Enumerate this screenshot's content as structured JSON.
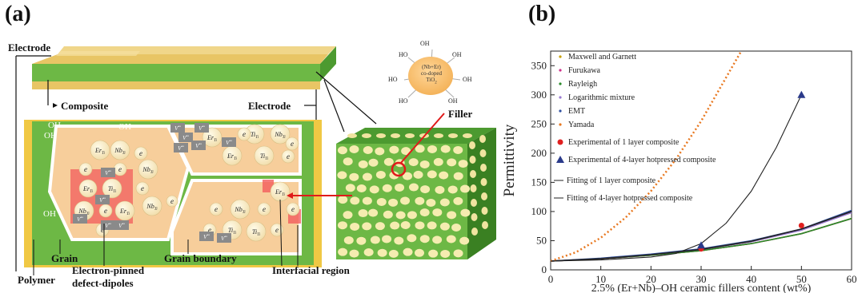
{
  "panel_a": {
    "label": "(a)",
    "labels": {
      "electrode_top": "Electrode",
      "composite": "Composite",
      "electrode_mid": "Electrode",
      "filler": "Filler",
      "grain": "Grain",
      "polymer": "Polymer",
      "electron_pinned": "Electron-pinned",
      "defect_dipoles": "defect-dipoles",
      "grain_boundary": "Grain boundary",
      "interfacial_region": "Interfacial region"
    },
    "molecule": {
      "center_line1": "(Nb+Er)",
      "center_line2": "co-doped",
      "center_line3": "TiO",
      "center_sub": "2",
      "oh": "OH",
      "ho": "HO"
    },
    "species": {
      "er": "Er",
      "nb": "Nb",
      "ti": "Ti",
      "e": "e",
      "sub": "Ti",
      "vo": "V",
      "vo_sup": "••",
      "oh": "OH"
    }
  },
  "panel_b": {
    "label": "(b)",
    "chart_data": {
      "type": "line",
      "xlabel": "2.5% (Er+Nb)–OH ceramic fillers content (wt%)",
      "ylabel": "Permittivity",
      "xlim": [
        0,
        60
      ],
      "ylim": [
        0,
        375
      ],
      "xticks": [
        0,
        10,
        20,
        30,
        40,
        50,
        60
      ],
      "yticks": [
        0,
        50,
        100,
        150,
        200,
        250,
        300,
        350
      ],
      "legend_position": "top-left",
      "series": [
        {
          "name": "Maxwell and Garnett",
          "color": "#c8a000",
          "x": [
            0,
            10,
            20,
            30,
            40,
            50,
            60
          ],
          "y": [
            15,
            19,
            25,
            33,
            45,
            62,
            88
          ]
        },
        {
          "name": "Furukawa",
          "color": "#d0308a",
          "x": [
            0,
            10,
            20,
            30,
            40,
            50,
            60
          ],
          "y": [
            15,
            19,
            25,
            33,
            45,
            62,
            88
          ]
        },
        {
          "name": "Rayleigh",
          "color": "#2a8a2a",
          "x": [
            0,
            10,
            20,
            30,
            40,
            50,
            60
          ],
          "y": [
            15,
            19,
            25,
            33,
            45,
            62,
            88
          ]
        },
        {
          "name": "Logarithmic mixture",
          "color": "#9a7ad0",
          "x": [
            0,
            10,
            20,
            30,
            40,
            50,
            60
          ],
          "y": [
            15,
            19,
            26,
            35,
            48,
            68,
            98
          ]
        },
        {
          "name": "EMT",
          "color": "#3050a0",
          "x": [
            0,
            10,
            20,
            30,
            40,
            50,
            60
          ],
          "y": [
            15,
            20,
            27,
            36,
            50,
            70,
            102
          ]
        },
        {
          "name": "Yamada",
          "color": "#e87820",
          "x": [
            0,
            5,
            10,
            15,
            20,
            25,
            30,
            35,
            38
          ],
          "y": [
            15,
            30,
            55,
            90,
            135,
            190,
            255,
            330,
            375
          ]
        },
        {
          "name": "Experimental of 1 layer composite",
          "color": "#e02020",
          "marker": "circle",
          "x": [
            0,
            30,
            50
          ],
          "y": [
            15,
            36,
            76
          ]
        },
        {
          "name": "Experimental of 4-layer hotpressed composite",
          "color": "#2a3a8a",
          "marker": "triangle",
          "x": [
            0,
            30,
            50
          ],
          "y": [
            15,
            42,
            300
          ]
        },
        {
          "name": "Fitting of 1 layer composite",
          "color": "#222222",
          "x": [
            0,
            10,
            20,
            30,
            40,
            50,
            60
          ],
          "y": [
            15,
            19,
            26,
            35,
            49,
            70,
            100
          ]
        },
        {
          "name": "Fitting of 4-layer hotpressed composite",
          "color": "#222222",
          "x": [
            0,
            10,
            20,
            25,
            30,
            35,
            40,
            45,
            50
          ],
          "y": [
            15,
            17,
            22,
            28,
            45,
            80,
            135,
            210,
            300
          ]
        }
      ]
    }
  }
}
